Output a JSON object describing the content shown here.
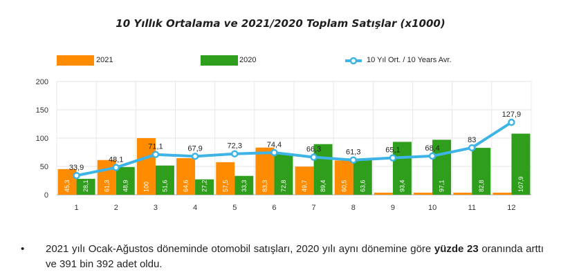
{
  "chart_data": {
    "type": "bar",
    "title": "10 Yıllık Ortalama ve 2021/2020 Toplam Satışlar (x1000)",
    "categories": [
      "1",
      "2",
      "3",
      "4",
      "5",
      "6",
      "7",
      "8",
      "9",
      "10",
      "11",
      "12"
    ],
    "series": [
      {
        "name": "2021",
        "kind": "bar",
        "color": "#ff8c00",
        "values": [
          45.3,
          61.3,
          100,
          64.6,
          57.5,
          83.3,
          49.7,
          60.5,
          null,
          null,
          null,
          null
        ],
        "labels": [
          "45,3",
          "61,3",
          "100",
          "64,6",
          "57,5",
          "83,3",
          "49,7",
          "60,5",
          "",
          "",
          "",
          ""
        ]
      },
      {
        "name": "2020",
        "kind": "bar",
        "color": "#2e9e1c",
        "values": [
          28.1,
          48.9,
          51.6,
          27.2,
          33.3,
          72.8,
          89.4,
          63.6,
          93.4,
          97.1,
          82.8,
          107.9
        ],
        "labels": [
          "28,1",
          "48,9",
          "51,6",
          "27,2",
          "33,3",
          "72,8",
          "89,4",
          "63,6",
          "93,4",
          "97,1",
          "82,8",
          "107,9"
        ]
      },
      {
        "name": "10 Yıl Ort. / 10 Years Avr.",
        "kind": "line",
        "color": "#3db3e6",
        "values": [
          33.9,
          48.1,
          71.1,
          67.9,
          72.3,
          74.4,
          66.3,
          61.3,
          65.1,
          68.4,
          83,
          127.9
        ],
        "labels": [
          "33,9",
          "48,1",
          "71,1",
          "67,9",
          "72,3",
          "74,4",
          "66,3",
          "61,3",
          "65,1",
          "68,4",
          "83",
          "127,9"
        ]
      }
    ],
    "yticks": [
      0,
      50,
      100,
      150,
      200
    ],
    "ylim": [
      0,
      200
    ],
    "grid": true,
    "legend": "top"
  },
  "bullet": {
    "text_before": "2021 yılı Ocak-Ağustos döneminde otomobil satışları, 2020 yılı aynı dönemine göre ",
    "text_bold": "yüzde 23",
    "text_after": " oranında arttı ve 391 bin 392 adet oldu.",
    "marker": "•"
  }
}
